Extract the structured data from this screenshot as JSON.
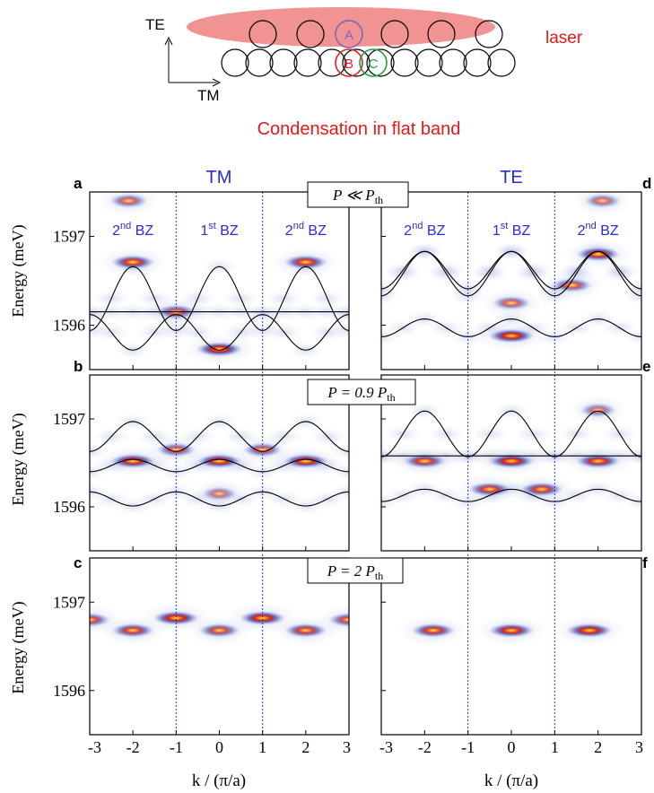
{
  "schematic": {
    "axis_te_label": "TE",
    "axis_tm_label": "TM",
    "laser_label": "laser",
    "site_a_label": "A",
    "site_b_label": "B",
    "site_c_label": "C",
    "caption": "Condensation in flat band",
    "colors": {
      "laser_fill": "#f08080",
      "laser_text": "#e81818",
      "site_a": "#7b68c8",
      "site_b": "#e02020",
      "site_c": "#20a040",
      "caption": "#e81818"
    }
  },
  "columns": {
    "left_title": "TM",
    "right_title": "TE",
    "title_color": "#2b2bd6"
  },
  "rows": [
    {
      "left_letter": "a",
      "right_letter": "d",
      "power_label": "P ≪ P_th",
      "power_main": "P ≪ P",
      "power_sub": "th"
    },
    {
      "left_letter": "b",
      "right_letter": "e",
      "power_label": "P = 0.9 P_th",
      "power_main": "P = 0.9 P",
      "power_sub": "th"
    },
    {
      "left_letter": "c",
      "right_letter": "f",
      "power_label": "P = 2 P_th",
      "power_main": "P = 2 P",
      "power_sub": "th"
    }
  ],
  "bz_labels": {
    "left": "2nd BZ",
    "center": "1st BZ",
    "right": "2nd BZ"
  },
  "bz_parts": {
    "second_num": "2",
    "second_sup": "nd",
    "first_num": "1",
    "first_sup": "st",
    "suffix": " BZ"
  },
  "y_axis_label": "Energy (meV)",
  "x_axis_label": "k / (π/a)",
  "chart_data": [
    {
      "type": "heatmap",
      "panel": "a",
      "polarization": "TM",
      "power": "P ≪ P_th",
      "xlabel": "k / (π/a)",
      "ylabel": "Energy (meV)",
      "xlim": [
        -3,
        3
      ],
      "ylim": [
        1595.5,
        1597.5
      ],
      "xticks": [
        -3,
        -2,
        -1,
        0,
        1,
        2,
        3
      ],
      "yticks": [
        1596,
        1597
      ],
      "bz_boundaries": [
        -1,
        1
      ],
      "band_curves": [
        {
          "kind": "cos",
          "center": 1596.3,
          "amplitude": 0.36
        },
        {
          "kind": "flat",
          "energy": 1596.15
        },
        {
          "kind": "cos",
          "center": 1595.92,
          "amplitude": -0.2
        }
      ],
      "emission": [
        {
          "k": -2,
          "energy": 1596.71,
          "intensity": 0.85
        },
        {
          "k": 2,
          "energy": 1596.71,
          "intensity": 0.85
        },
        {
          "k": 0,
          "energy": 1595.73,
          "intensity": 1.0
        },
        {
          "k": -1,
          "energy": 1596.15,
          "intensity": 0.6
        },
        {
          "k": -2.1,
          "energy": 1597.4,
          "intensity": 0.5
        }
      ]
    },
    {
      "type": "heatmap",
      "panel": "b",
      "polarization": "TM",
      "power": "P = 0.9 P_th",
      "xlabel": "k / (π/a)",
      "ylabel": "Energy (meV)",
      "xlim": [
        -3,
        3
      ],
      "ylim": [
        1595.5,
        1597.5
      ],
      "xticks": [
        -3,
        -2,
        -1,
        0,
        1,
        2,
        3
      ],
      "yticks": [
        1596,
        1597
      ],
      "bz_boundaries": [
        -1,
        1
      ],
      "band_curves": [
        {
          "kind": "cos",
          "center": 1596.8,
          "amplitude": 0.17
        },
        {
          "kind": "cos",
          "center": 1596.47,
          "amplitude": 0.07
        },
        {
          "kind": "cos",
          "center": 1596.09,
          "amplitude": -0.08
        }
      ],
      "emission": [
        {
          "k": -2,
          "energy": 1596.52,
          "intensity": 0.95
        },
        {
          "k": 0,
          "energy": 1596.52,
          "intensity": 0.95
        },
        {
          "k": 2,
          "energy": 1596.52,
          "intensity": 0.95
        },
        {
          "k": -1,
          "energy": 1596.65,
          "intensity": 0.55
        },
        {
          "k": 1,
          "energy": 1596.65,
          "intensity": 0.55
        },
        {
          "k": 0,
          "energy": 1596.15,
          "intensity": 0.35
        }
      ]
    },
    {
      "type": "heatmap",
      "panel": "c",
      "polarization": "TM",
      "power": "P = 2 P_th",
      "xlabel": "k / (π/a)",
      "ylabel": "Energy (meV)",
      "xlim": [
        -3,
        3
      ],
      "ylim": [
        1595.5,
        1597.5
      ],
      "xticks": [
        -3,
        -2,
        -1,
        0,
        1,
        2,
        3
      ],
      "yticks": [
        1596,
        1597
      ],
      "bz_boundaries": [
        -1,
        1
      ],
      "band_curves": [],
      "emission": [
        {
          "k": -1,
          "energy": 1596.82,
          "intensity": 1.0
        },
        {
          "k": 1,
          "energy": 1596.82,
          "intensity": 1.0
        },
        {
          "k": -3,
          "energy": 1596.8,
          "intensity": 0.7
        },
        {
          "k": 3,
          "energy": 1596.8,
          "intensity": 0.7
        },
        {
          "k": -2,
          "energy": 1596.68,
          "intensity": 0.8
        },
        {
          "k": 0,
          "energy": 1596.68,
          "intensity": 0.7
        },
        {
          "k": 2,
          "energy": 1596.68,
          "intensity": 0.8
        }
      ]
    },
    {
      "type": "heatmap",
      "panel": "d",
      "polarization": "TE",
      "power": "P ≪ P_th",
      "xlabel": "k / (π/a)",
      "ylabel": "",
      "xlim": [
        -3,
        3
      ],
      "ylim": [
        1595.5,
        1597.5
      ],
      "xticks": [
        -3,
        -2,
        -1,
        0,
        1,
        2,
        3
      ],
      "yticks": [
        1596,
        1597
      ],
      "bz_boundaries": [
        -1,
        1
      ],
      "band_curves": [
        {
          "kind": "cos",
          "center": 1596.58,
          "amplitude": 0.25
        },
        {
          "kind": "cos",
          "center": 1596.62,
          "amplitude": 0.21
        },
        {
          "kind": "cos",
          "center": 1595.97,
          "amplitude": 0.1
        }
      ],
      "emission": [
        {
          "k": 0,
          "energy": 1595.88,
          "intensity": 1.0
        },
        {
          "k": 0,
          "energy": 1596.25,
          "intensity": 0.5
        },
        {
          "k": 2,
          "energy": 1596.8,
          "intensity": 0.85
        },
        {
          "k": 1.4,
          "energy": 1596.45,
          "intensity": 0.6
        },
        {
          "k": 2.1,
          "energy": 1597.4,
          "intensity": 0.4
        }
      ]
    },
    {
      "type": "heatmap",
      "panel": "e",
      "polarization": "TE",
      "power": "P = 0.9 P_th",
      "xlabel": "k / (π/a)",
      "ylabel": "",
      "xlim": [
        -3,
        3
      ],
      "ylim": [
        1595.5,
        1597.5
      ],
      "xticks": [
        -3,
        -2,
        -1,
        0,
        1,
        2,
        3
      ],
      "yticks": [
        1596,
        1597
      ],
      "bz_boundaries": [
        -1,
        1
      ],
      "band_curves": [
        {
          "kind": "cos",
          "center": 1596.83,
          "amplitude": 0.26
        },
        {
          "kind": "flat",
          "energy": 1596.58
        },
        {
          "kind": "cos",
          "center": 1596.13,
          "amplitude": 0.07
        }
      ],
      "emission": [
        {
          "k": -2,
          "energy": 1596.52,
          "intensity": 0.8
        },
        {
          "k": 0,
          "energy": 1596.52,
          "intensity": 1.0
        },
        {
          "k": 2,
          "energy": 1596.52,
          "intensity": 0.9
        },
        {
          "k": -0.5,
          "energy": 1596.2,
          "intensity": 0.8
        },
        {
          "k": 0.7,
          "energy": 1596.2,
          "intensity": 0.8
        },
        {
          "k": 2,
          "energy": 1597.1,
          "intensity": 0.35
        }
      ]
    },
    {
      "type": "heatmap",
      "panel": "f",
      "polarization": "TE",
      "power": "P = 2 P_th",
      "xlabel": "k / (π/a)",
      "ylabel": "",
      "xlim": [
        -3,
        3
      ],
      "ylim": [
        1595.5,
        1597.5
      ],
      "xticks": [
        -3,
        -2,
        -1,
        0,
        1,
        2,
        3
      ],
      "yticks": [
        1596,
        1597
      ],
      "bz_boundaries": [
        -1,
        1
      ],
      "band_curves": [],
      "emission": [
        {
          "k": -1.8,
          "energy": 1596.68,
          "intensity": 0.85
        },
        {
          "k": 0,
          "energy": 1596.68,
          "intensity": 0.95
        },
        {
          "k": 1.8,
          "energy": 1596.68,
          "intensity": 1.0
        }
      ]
    }
  ]
}
